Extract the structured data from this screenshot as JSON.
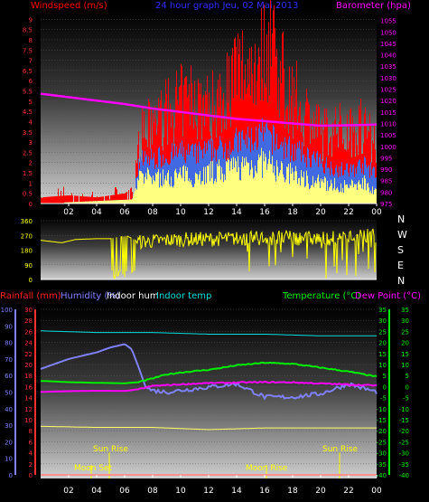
{
  "chart_data": [
    {
      "type": "line",
      "title": "24 hour graph Jeu, 02 Mai 2013",
      "ylabel_left": "Windspeed (m/s)",
      "ylabel_right": "Barometer (hpa)",
      "x_ticks": [
        "02",
        "04",
        "06",
        "08",
        "10",
        "12",
        "14",
        "16",
        "18",
        "20",
        "22",
        "00"
      ],
      "y_left_ticks": [
        "0",
        "0.5",
        "1",
        "1.5",
        "2",
        "2.5",
        "3",
        "3.5",
        "4",
        "4.5",
        "5",
        "5.5",
        "6",
        "6.5",
        "7",
        "7.5",
        "8",
        "8.5",
        "9"
      ],
      "y_left_range": [
        0,
        9.5
      ],
      "y_right_ticks": [
        "975",
        "980",
        "985",
        "990",
        "995",
        "1000",
        "1005",
        "1010",
        "1015",
        "1020",
        "1025",
        "1030",
        "1035",
        "1040",
        "1045",
        "1050",
        "1055"
      ],
      "y_right_range": [
        975,
        1060
      ],
      "series": [
        {
          "name": "Barometer (hpa)",
          "color": "#ff00ff",
          "x": [
            0,
            2,
            4,
            6,
            8,
            10,
            12,
            14,
            16,
            18,
            20,
            22,
            24
          ],
          "y": [
            1023,
            1021.5,
            1020,
            1018.5,
            1016.5,
            1015,
            1013.5,
            1012,
            1011,
            1010,
            1009,
            1009.2,
            1009.5
          ]
        },
        {
          "name": "gust",
          "color": "#ff0000",
          "x": [
            0,
            2,
            4,
            6,
            6.5,
            7,
            8,
            9,
            10,
            11,
            12,
            13,
            14,
            15,
            16,
            16.5,
            17,
            18,
            19,
            20,
            21,
            22,
            23,
            24
          ],
          "y": [
            0.3,
            0.4,
            0.3,
            0.5,
            0.8,
            3.2,
            3.9,
            4.4,
            4.9,
            5.2,
            4.6,
            5.4,
            6.4,
            6.9,
            7.4,
            8.8,
            6.4,
            5.2,
            4.4,
            3.4,
            3.6,
            3.7,
            3.9,
            2.9
          ]
        },
        {
          "name": "average",
          "color": "#4169e1",
          "x": [
            0,
            6.5,
            7,
            8,
            9,
            10,
            11,
            12,
            13,
            14,
            15,
            16,
            17,
            18,
            19,
            20,
            21,
            22,
            23,
            24
          ],
          "y": [
            0,
            0.2,
            2.1,
            2.2,
            2.3,
            2.5,
            2.4,
            2.6,
            2.7,
            3.0,
            3.1,
            3.4,
            2.9,
            2.6,
            2.3,
            2.0,
            1.7,
            1.6,
            1.9,
            1.4
          ]
        },
        {
          "name": "wind",
          "color": "#ffff80",
          "x": [
            0,
            6.5,
            7,
            8,
            9,
            10,
            11,
            12,
            13,
            14,
            15,
            16,
            17,
            18,
            19,
            20,
            21,
            22,
            23,
            24
          ],
          "y": [
            0,
            0.2,
            1.2,
            1.3,
            1.2,
            1.4,
            1.3,
            1.5,
            1.6,
            1.8,
            1.9,
            2.0,
            1.6,
            1.4,
            1.2,
            1.0,
            0.9,
            0.8,
            1.1,
            0.6
          ]
        }
      ]
    },
    {
      "type": "line",
      "ylabel_right": "N W S E N",
      "y_ticks": [
        "360",
        "270",
        "180",
        "90",
        "0"
      ],
      "y_range": [
        0,
        360
      ],
      "series": [
        {
          "name": "wind direction",
          "color": "#ffff00",
          "x": [
            0,
            1.5,
            2.5,
            4,
            4.5,
            5,
            5.5,
            6.2,
            7,
            10,
            14,
            17,
            20,
            22,
            24
          ],
          "y": [
            240,
            225,
            245,
            250,
            250,
            250,
            260,
            265,
            230,
            245,
            250,
            255,
            250,
            260,
            270
          ]
        }
      ]
    },
    {
      "type": "line",
      "legend": [
        "Rainfall (mm)",
        "Humidity (%)",
        "Indoor hum",
        "Indoor temp",
        "Temperature (°C)",
        "Dew Point (°C)"
      ],
      "y_left1_ticks": [
        "0",
        "10",
        "20",
        "30",
        "40",
        "50",
        "60",
        "70",
        "80",
        "90",
        "100"
      ],
      "y_left2_ticks": [
        "0",
        "2",
        "4",
        "6",
        "8",
        "10",
        "12",
        "14",
        "16",
        "18",
        "20",
        "22",
        "24",
        "26",
        "28",
        "30"
      ],
      "y_right1_ticks": [
        "-40",
        "-35",
        "-30",
        "-25",
        "-20",
        "-15",
        "-10",
        "-5",
        "0",
        "5",
        "10",
        "15",
        "20",
        "25",
        "30",
        "35"
      ],
      "y_right2_ticks": [
        "-40",
        "-35",
        "-30",
        "-25",
        "-20",
        "-15",
        "-10",
        "-5",
        "0",
        "5",
        "10",
        "15",
        "20",
        "25",
        "30",
        "35"
      ],
      "annotations": [
        "Sun Rise",
        "Moon Set",
        "Moon Rise",
        "Sun Rise"
      ],
      "series": [
        {
          "name": "Humidity (%)",
          "color": "#8080ff",
          "x": [
            0,
            1,
            2,
            3,
            4,
            5,
            6,
            6.5,
            7,
            7.5,
            8,
            9,
            10,
            12,
            14,
            16,
            18,
            20,
            22,
            24
          ],
          "y": [
            64,
            67,
            70,
            72,
            74,
            77,
            79,
            76,
            65,
            53,
            51,
            50,
            51,
            53,
            55,
            47,
            47,
            49,
            55,
            50
          ]
        },
        {
          "name": "Indoor temp",
          "color": "#00dddd",
          "x": [
            0,
            4,
            8,
            12,
            16,
            20,
            24
          ],
          "y": [
            87,
            86,
            86,
            85,
            85,
            84,
            84
          ]
        },
        {
          "name": "Temperature (°C)",
          "color": "#00ee00",
          "x": [
            0,
            2,
            4,
            6,
            7,
            8,
            9,
            10,
            12,
            14,
            16,
            18,
            20,
            22,
            24
          ],
          "y": [
            2.6,
            2.0,
            1.7,
            1.5,
            2.0,
            3.7,
            5.5,
            6.4,
            7.6,
            9.6,
            10.8,
            10.3,
            8.6,
            6.8,
            4.5
          ]
        },
        {
          "name": "Dew Point (°C)",
          "color": "#ff00ff",
          "x": [
            0,
            2,
            4,
            6,
            7,
            8,
            10,
            12,
            14,
            16,
            18,
            20,
            22,
            24
          ],
          "y": [
            -2.4,
            -2.1,
            -1.9,
            -2.0,
            -1.2,
            0.3,
            1.0,
            1.6,
            1.8,
            2.0,
            1.9,
            1.4,
            0.9,
            0.5
          ]
        },
        {
          "name": "Indoor hum",
          "color": "#ffff66",
          "x": [
            0,
            4,
            8,
            12,
            16,
            20,
            24
          ],
          "y": [
            8.8,
            8.6,
            8.6,
            8.2,
            8.5,
            8.5,
            8.5
          ]
        },
        {
          "name": "Rainfall (mm)",
          "color": "#ff2222",
          "x": [
            0,
            24
          ],
          "y": [
            0,
            0
          ]
        }
      ]
    }
  ]
}
